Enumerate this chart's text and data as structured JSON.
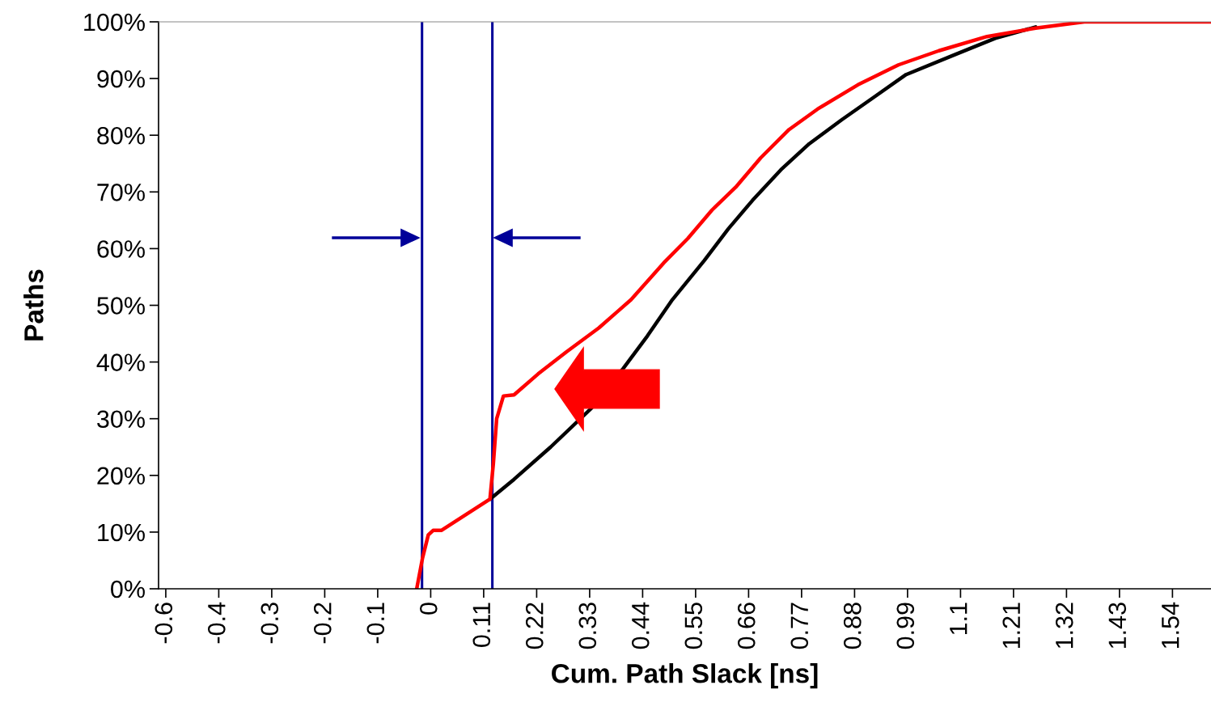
{
  "chart_data": {
    "type": "line",
    "xlabel": "Cum. Path Slack [ns]",
    "ylabel": "Paths",
    "series": [
      {
        "color": "#000000",
        "x": [
          0.123,
          0.173,
          0.249,
          0.333,
          0.4,
          0.45,
          0.5,
          0.568,
          0.618,
          0.668,
          0.727,
          0.786,
          0.853,
          0.92,
          0.987,
          1.088,
          1.172,
          1.256
        ],
        "values": [
          15.8,
          19.3,
          25,
          31.8,
          38.9,
          44.6,
          50.8,
          57.9,
          63.5,
          68.5,
          73.9,
          78.5,
          82.7,
          86.7,
          90.7,
          94.2,
          97.1,
          99.1
        ]
      },
      {
        "color": "#ff0000",
        "x": [
          -0.029,
          -0.017,
          -0.005,
          0.005,
          0.022,
          0.123,
          0.13,
          0.137,
          0.151,
          0.173,
          0.223,
          0.282,
          0.349,
          0.416,
          0.484,
          0.534,
          0.584,
          0.635,
          0.685,
          0.744,
          0.803,
          0.887,
          0.971,
          1.055,
          1.155,
          1.256,
          1.357,
          1.62
        ],
        "values": [
          0,
          5.4,
          9.5,
          10.3,
          10.3,
          15.8,
          22,
          30,
          34,
          34.2,
          37.9,
          41.8,
          46,
          51,
          57.5,
          61.8,
          66.8,
          71,
          76,
          81,
          84.6,
          88.9,
          92.4,
          94.9,
          97.4,
          98.9,
          100,
          100
        ]
      }
    ],
    "xlim": [
      -0.565,
      1.62
    ],
    "xticks": [
      {
        "value": -0.55,
        "label": "-0.6"
      },
      {
        "value": -0.44,
        "label": "-0.4"
      },
      {
        "value": -0.33,
        "label": "-0.3"
      },
      {
        "value": -0.22,
        "label": "-0.2"
      },
      {
        "value": -0.11,
        "label": "-0.1"
      },
      0,
      0.11,
      0.22,
      0.33,
      0.44,
      0.55,
      0.66,
      0.77,
      0.88,
      0.99,
      1.1,
      1.21,
      1.32,
      1.43,
      1.54
    ],
    "ylim": [
      0,
      100
    ],
    "yticks": [
      {
        "value": 0,
        "label": "0%"
      },
      {
        "value": 10,
        "label": "10%"
      },
      {
        "value": 20,
        "label": "20%"
      },
      {
        "value": 30,
        "label": "30%"
      },
      {
        "value": 40,
        "label": "40%"
      },
      {
        "value": 50,
        "label": "50%"
      },
      {
        "value": 60,
        "label": "60%"
      },
      {
        "value": 70,
        "label": "70%"
      },
      {
        "value": 80,
        "label": "80%"
      },
      {
        "value": 90,
        "label": "90%"
      },
      {
        "value": 100,
        "label": "100%"
      }
    ],
    "ref_lines": [
      {
        "axis": "x",
        "value": -0.018,
        "color": "#000099"
      },
      {
        "axis": "x",
        "value": 0.128,
        "color": "#000099"
      }
    ],
    "grid": false,
    "marker": "none",
    "line_style": "solid"
  }
}
